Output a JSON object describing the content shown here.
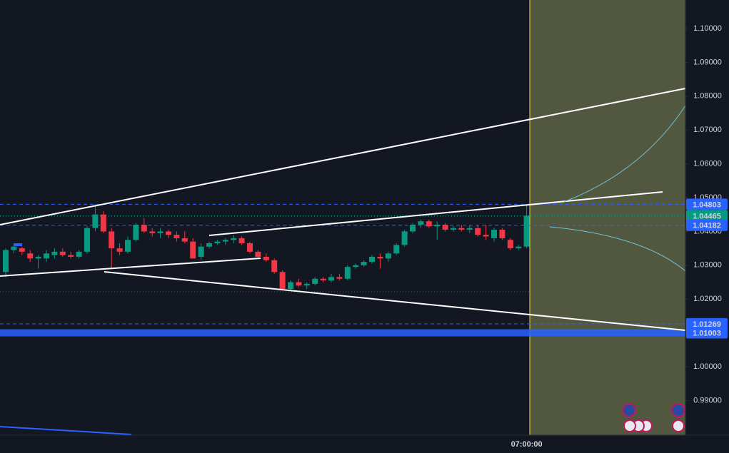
{
  "chart_data": {
    "type": "candlestick",
    "up_color": "#089981",
    "down_color": "#f23645",
    "categories": [
      null,
      null,
      null,
      null,
      null,
      null,
      null,
      null,
      null,
      null,
      null,
      null,
      null,
      null,
      null,
      null,
      null,
      null,
      null,
      null,
      null,
      null,
      null,
      null,
      null,
      null,
      null,
      null,
      null,
      null,
      null,
      null,
      null,
      null,
      null,
      null,
      null,
      null,
      null,
      null,
      null,
      null,
      null,
      null,
      null,
      null,
      null,
      null,
      null,
      null,
      null,
      null,
      null,
      null,
      null,
      null,
      null,
      null,
      null,
      null,
      null,
      null,
      null,
      null,
      "07:00:00"
    ],
    "open": [
      1.028,
      1.0345,
      1.035,
      1.0335,
      1.032,
      1.032,
      1.033,
      1.034,
      1.033,
      1.0325,
      1.034,
      1.041,
      1.045,
      1.04,
      1.035,
      1.034,
      1.0375,
      1.042,
      1.04,
      1.0395,
      1.04,
      1.039,
      1.038,
      1.037,
      1.0325,
      1.0355,
      1.0365,
      1.037,
      1.0375,
      1.038,
      1.0365,
      1.034,
      1.0325,
      1.0315,
      1.028,
      1.023,
      1.025,
      1.024,
      1.0245,
      1.026,
      1.0255,
      1.0265,
      1.026,
      1.0295,
      1.03,
      1.031,
      1.0325,
      1.032,
      1.0335,
      1.036,
      1.04,
      1.042,
      1.043,
      1.0415,
      1.042,
      1.0405,
      1.041,
      1.0405,
      1.041,
      1.039,
      1.038,
      1.0405,
      1.0375,
      1.035,
      1.0355
    ],
    "high": [
      1.035,
      1.0365,
      1.0355,
      1.0345,
      1.033,
      1.0345,
      1.035,
      1.035,
      1.034,
      1.0345,
      1.0415,
      1.048,
      1.046,
      1.041,
      1.0365,
      1.0385,
      1.0425,
      1.044,
      1.041,
      1.041,
      1.0405,
      1.04,
      1.04,
      1.038,
      1.0365,
      1.037,
      1.0375,
      1.038,
      1.039,
      1.0385,
      1.037,
      1.0345,
      1.0335,
      1.032,
      1.0285,
      1.0255,
      1.026,
      1.025,
      1.0265,
      1.0265,
      1.0275,
      1.0275,
      1.03,
      1.0305,
      1.0315,
      1.033,
      1.0335,
      1.034,
      1.0365,
      1.0405,
      1.0425,
      1.0435,
      1.0435,
      1.043,
      1.0425,
      1.0415,
      1.042,
      1.042,
      1.042,
      1.042,
      1.041,
      1.041,
      1.038,
      1.036,
      1.048
    ],
    "low": [
      1.0265,
      1.0335,
      1.033,
      1.031,
      1.029,
      1.031,
      1.032,
      1.0325,
      1.032,
      1.032,
      1.0335,
      1.04,
      1.0395,
      1.029,
      1.033,
      1.0335,
      1.037,
      1.0395,
      1.0385,
      1.038,
      1.038,
      1.037,
      1.0365,
      1.032,
      1.0315,
      1.035,
      1.036,
      1.036,
      1.0365,
      1.036,
      1.0335,
      1.032,
      1.031,
      1.0275,
      1.0225,
      1.0225,
      1.0235,
      1.023,
      1.024,
      1.025,
      1.025,
      1.0255,
      1.0255,
      1.029,
      1.0295,
      1.0305,
      1.029,
      1.031,
      1.033,
      1.0355,
      1.0395,
      1.041,
      1.041,
      1.0375,
      1.04,
      1.04,
      1.04,
      1.0395,
      1.0385,
      1.0375,
      1.037,
      1.0375,
      1.0345,
      1.0345,
      1.035
    ],
    "close": [
      1.0345,
      1.0355,
      1.034,
      1.032,
      1.0325,
      1.0335,
      1.034,
      1.033,
      1.0325,
      1.034,
      1.041,
      1.045,
      1.04,
      1.035,
      1.034,
      1.0375,
      1.042,
      1.04,
      1.0395,
      1.04,
      1.039,
      1.038,
      1.037,
      1.032,
      1.0355,
      1.0365,
      1.037,
      1.0375,
      1.038,
      1.0365,
      1.034,
      1.0325,
      1.0315,
      1.028,
      1.023,
      1.025,
      1.024,
      1.0245,
      1.026,
      1.0255,
      1.0265,
      1.026,
      1.0295,
      1.03,
      1.031,
      1.0325,
      1.032,
      1.0335,
      1.036,
      1.04,
      1.042,
      1.043,
      1.0415,
      1.042,
      1.0405,
      1.041,
      1.0405,
      1.041,
      1.039,
      1.0385,
      1.0405,
      1.038,
      1.035,
      1.0355,
      1.04465
    ],
    "ylim": [
      0.97975,
      1.10844
    ],
    "yticks": [
      {
        "value": 0.99,
        "label": "0.99000"
      },
      {
        "value": 1.0,
        "label": "1.00000"
      },
      {
        "value": 1.01,
        "label": "1.01000"
      },
      {
        "value": 1.02,
        "label": "1.02000"
      },
      {
        "value": 1.03,
        "label": "1.03000"
      },
      {
        "value": 1.04,
        "label": "1.04000"
      },
      {
        "value": 1.05,
        "label": "1.05000"
      },
      {
        "value": 1.06,
        "label": "1.06000"
      },
      {
        "value": 1.07,
        "label": "1.07000"
      },
      {
        "value": 1.08,
        "label": "1.08000"
      },
      {
        "value": 1.09,
        "label": "1.09000"
      },
      {
        "value": 1.1,
        "label": "1.10000"
      }
    ],
    "price_lines": [
      {
        "value": 1.04803,
        "color": "#2962ff",
        "style": "dashed"
      },
      {
        "value": 1.04465,
        "color": "#089981",
        "style": "dotted"
      },
      {
        "value": 1.04182,
        "color": "#2962ff",
        "style": "dashed"
      },
      {
        "value": 1.01269,
        "color": "#2962ff",
        "style": "dashed"
      },
      {
        "value": 1.01003,
        "color": "#2962ff",
        "style": "band"
      }
    ]
  }
}
